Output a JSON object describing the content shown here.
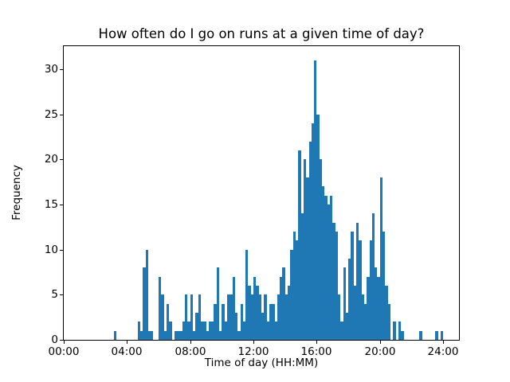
{
  "figure": {
    "background": "#ffffff",
    "text_color": "#000000"
  },
  "chart_data": {
    "type": "bar",
    "subtype": "histogram",
    "title": "How often do I go on runs at a given time of day?",
    "xlabel": "Time of day (HH:MM)",
    "ylabel": "Frequency",
    "bar_color": "#1f77b4",
    "grid": false,
    "legend": "none",
    "bin_minutes": 10,
    "bins_start": "00:00",
    "xlim_hours": [
      0,
      25
    ],
    "ylim": [
      0,
      32.55
    ],
    "x_ticks": [
      {
        "hour": 0,
        "label": "00:00"
      },
      {
        "hour": 4,
        "label": "04:00"
      },
      {
        "hour": 8,
        "label": "08:00"
      },
      {
        "hour": 12,
        "label": "12:00"
      },
      {
        "hour": 16,
        "label": "16:00"
      },
      {
        "hour": 20,
        "label": "20:00"
      },
      {
        "hour": 24,
        "label": "24:00"
      }
    ],
    "y_ticks": [
      0,
      5,
      10,
      15,
      20,
      25,
      30
    ],
    "counts": [
      0,
      0,
      0,
      0,
      0,
      0,
      0,
      0,
      0,
      0,
      0,
      0,
      0,
      0,
      0,
      0,
      0,
      0,
      0,
      1,
      0,
      0,
      0,
      0,
      0,
      0,
      0,
      0,
      2,
      1,
      8,
      10,
      1,
      1,
      0,
      0,
      7,
      5,
      1,
      4,
      2,
      0,
      1,
      1,
      1,
      2,
      5,
      2,
      5,
      1,
      3,
      5,
      2,
      2,
      1,
      2,
      2,
      4,
      8,
      1,
      4,
      2,
      5,
      5,
      7,
      3,
      1,
      4,
      2,
      10,
      6,
      5,
      7,
      6,
      5,
      3,
      5,
      2,
      4,
      4,
      2,
      5,
      7,
      8,
      5,
      6,
      10,
      12,
      11,
      21,
      14,
      20,
      18,
      22,
      24,
      31,
      25,
      20,
      17,
      16,
      15,
      16,
      13,
      12,
      5,
      2,
      8,
      3,
      9,
      12,
      6,
      13,
      11,
      5,
      4,
      7,
      11,
      14,
      8,
      7,
      18,
      12,
      6,
      4,
      0,
      2,
      0,
      2,
      1,
      0,
      0,
      0,
      0,
      0,
      0,
      1,
      0,
      0,
      0,
      0,
      0,
      1,
      0,
      1
    ]
  }
}
